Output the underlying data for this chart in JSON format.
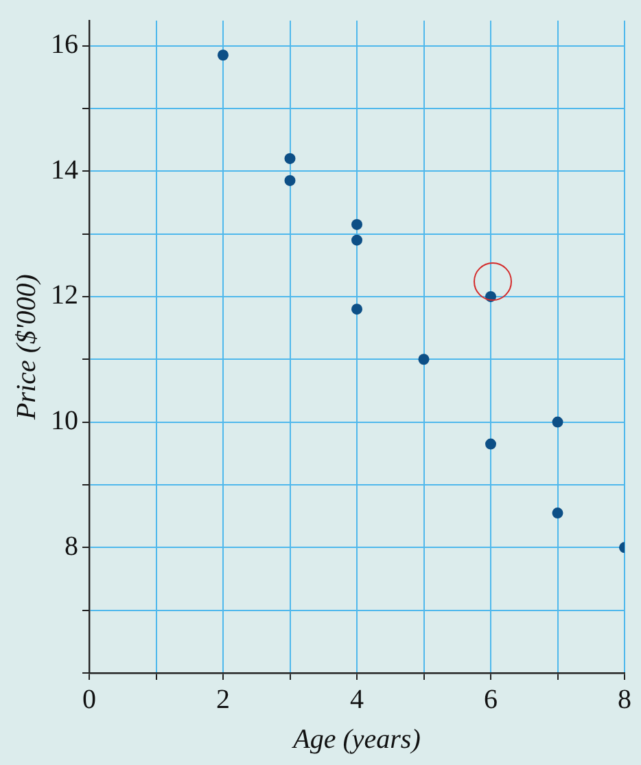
{
  "chart_data": {
    "type": "scatter",
    "xlabel": "Age (years)",
    "ylabel": "Price ($'000)",
    "xlim": [
      0,
      8
    ],
    "xticks": [
      0,
      {
        "value": 1,
        "label": null
      },
      2,
      {
        "value": 3,
        "label": null
      },
      4,
      {
        "value": 5,
        "label": null
      },
      6,
      {
        "value": 7,
        "label": null
      },
      8
    ],
    "ylim": [
      6,
      16.4
    ],
    "yticks": [
      {
        "value": 6,
        "label": null
      },
      {
        "value": 7,
        "label": null
      },
      8,
      {
        "value": 9,
        "label": null
      },
      10,
      {
        "value": 11,
        "label": null
      },
      12,
      {
        "value": 13,
        "label": null
      },
      14,
      {
        "value": 15,
        "label": null
      },
      16
    ],
    "grid": true,
    "marker": "circle",
    "legend": false,
    "series": [
      {
        "color": "#0d4f86",
        "x": [
          2,
          3,
          3,
          4,
          4,
          4,
          5,
          6,
          6,
          7,
          7,
          8
        ],
        "values": [
          15.85,
          14.2,
          13.85,
          13.15,
          12.9,
          11.8,
          11,
          12,
          9.65,
          10,
          8.55,
          8
        ]
      }
    ]
  }
}
